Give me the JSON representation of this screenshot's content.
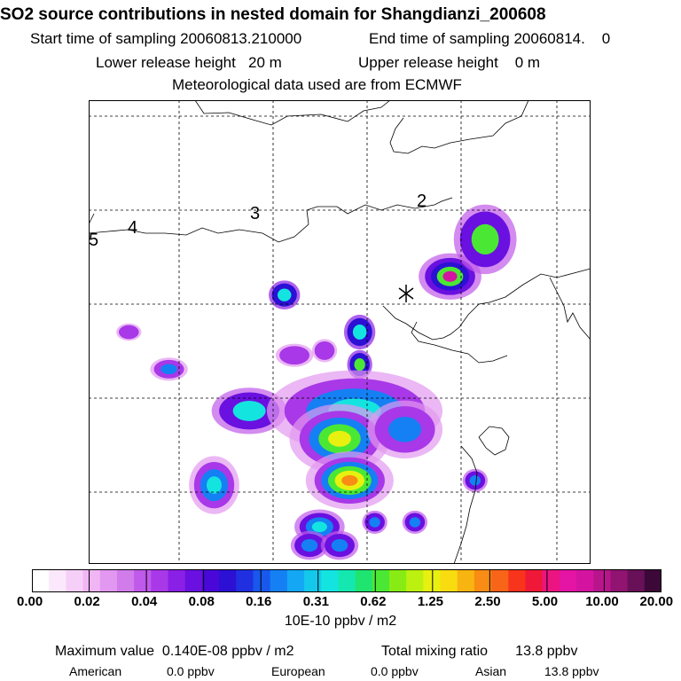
{
  "header": {
    "title": "SO2 source contributions in nested domain for Shangdianzi_200608",
    "start_label": "Start time of sampling 20060813.210000",
    "end_label": "End time of sampling 20060814.    0",
    "lower_label": "Lower release height   20 m",
    "upper_label": "Upper release height    0 m",
    "met_label": "Meteorological data used are from ECMWF"
  },
  "chart_data": {
    "type": "heatmap",
    "title": "SO2 source contributions in nested domain for Shangdianzi_200608",
    "colorbar": {
      "unit_label": "10E-10 ppbv / m2",
      "tick_labels": [
        "0.00",
        "0.02",
        "0.04",
        "0.08",
        "0.16",
        "0.31",
        "0.62",
        "1.25",
        "2.50",
        "5.00",
        "10.00",
        "20.00"
      ],
      "colors": [
        "#ffffff",
        "#fce8fc",
        "#f6cff8",
        "#f0b6f4",
        "#e298f0",
        "#d27cec",
        "#c05aea",
        "#a838e8",
        "#8a20e6",
        "#6a10e0",
        "#4a08d8",
        "#2c10d4",
        "#2030e0",
        "#1858ec",
        "#1480f4",
        "#14a8f4",
        "#14c8ec",
        "#14e4e0",
        "#14e8b0",
        "#20e470",
        "#4ae834",
        "#88ec14",
        "#bcf010",
        "#e8f010",
        "#f8dc10",
        "#f8b410",
        "#f88c14",
        "#f86418",
        "#f8341c",
        "#f01838",
        "#ec1480",
        "#e414a4",
        "#d414a0",
        "#b8148c",
        "#901470",
        "#681058",
        "#3c0838"
      ],
      "tick_every": 3
    },
    "region_labels": [
      "2",
      "3",
      "4",
      "5"
    ],
    "receptor": "Shangdianzi",
    "max_value_label": "Maximum value  0.140E-08 ppbv / m2",
    "total_label": "Total mixing ratio       13.8 ppbv",
    "contributions": [
      {
        "name": "American",
        "value_label": "0.0 ppbv",
        "value": 0.0
      },
      {
        "name": "European",
        "value_label": "0.0 ppbv",
        "value": 0.0
      },
      {
        "name": "Asian",
        "value_label": "13.8 ppbv",
        "value": 13.8
      }
    ],
    "plumes": [
      {
        "cx": 0.72,
        "cy": 0.38,
        "rx": 0.05,
        "ry": 0.04,
        "level": 2,
        "core": [
          3,
          6,
          10
        ]
      },
      {
        "cx": 0.79,
        "cy": 0.3,
        "rx": 0.05,
        "ry": 0.06,
        "level": 2,
        "core": [
          6
        ]
      },
      {
        "cx": 0.39,
        "cy": 0.42,
        "rx": 0.025,
        "ry": 0.025,
        "level": 3,
        "core": [
          5
        ]
      },
      {
        "cx": 0.54,
        "cy": 0.5,
        "rx": 0.025,
        "ry": 0.03,
        "level": 3,
        "core": [
          5
        ]
      },
      {
        "cx": 0.54,
        "cy": 0.57,
        "rx": 0.02,
        "ry": 0.025,
        "level": 3,
        "core": [
          6
        ]
      },
      {
        "cx": 0.16,
        "cy": 0.58,
        "rx": 0.03,
        "ry": 0.02,
        "level": 1,
        "core": [
          4
        ]
      },
      {
        "cx": 0.32,
        "cy": 0.67,
        "rx": 0.06,
        "ry": 0.04,
        "level": 2,
        "core": [
          5
        ]
      },
      {
        "cx": 0.53,
        "cy": 0.67,
        "rx": 0.14,
        "ry": 0.07,
        "level": 1,
        "core": [
          4,
          5
        ]
      },
      {
        "cx": 0.5,
        "cy": 0.73,
        "rx": 0.08,
        "ry": 0.06,
        "level": 1,
        "core": [
          4,
          6,
          7
        ]
      },
      {
        "cx": 0.63,
        "cy": 0.71,
        "rx": 0.06,
        "ry": 0.05,
        "level": 1,
        "core": [
          4
        ]
      },
      {
        "cx": 0.25,
        "cy": 0.83,
        "rx": 0.04,
        "ry": 0.05,
        "level": 1,
        "core": [
          4,
          5
        ]
      },
      {
        "cx": 0.52,
        "cy": 0.82,
        "rx": 0.07,
        "ry": 0.05,
        "level": 1,
        "core": [
          4,
          6,
          7,
          8
        ]
      },
      {
        "cx": 0.77,
        "cy": 0.82,
        "rx": 0.02,
        "ry": 0.02,
        "level": 2,
        "core": [
          4
        ]
      },
      {
        "cx": 0.57,
        "cy": 0.91,
        "rx": 0.02,
        "ry": 0.02,
        "level": 2,
        "core": [
          4
        ]
      },
      {
        "cx": 0.65,
        "cy": 0.91,
        "rx": 0.02,
        "ry": 0.02,
        "level": 2,
        "core": [
          4
        ]
      },
      {
        "cx": 0.46,
        "cy": 0.92,
        "rx": 0.04,
        "ry": 0.03,
        "level": 2,
        "core": [
          4,
          5
        ]
      },
      {
        "cx": 0.44,
        "cy": 0.96,
        "rx": 0.03,
        "ry": 0.025,
        "level": 2,
        "core": [
          4
        ]
      },
      {
        "cx": 0.5,
        "cy": 0.96,
        "rx": 0.03,
        "ry": 0.025,
        "level": 2,
        "core": [
          4
        ]
      },
      {
        "cx": 0.08,
        "cy": 0.5,
        "rx": 0.02,
        "ry": 0.015,
        "level": 1,
        "core": []
      },
      {
        "cx": 0.41,
        "cy": 0.55,
        "rx": 0.03,
        "ry": 0.02,
        "level": 1,
        "core": []
      },
      {
        "cx": 0.47,
        "cy": 0.54,
        "rx": 0.02,
        "ry": 0.02,
        "level": 1,
        "core": []
      }
    ]
  }
}
